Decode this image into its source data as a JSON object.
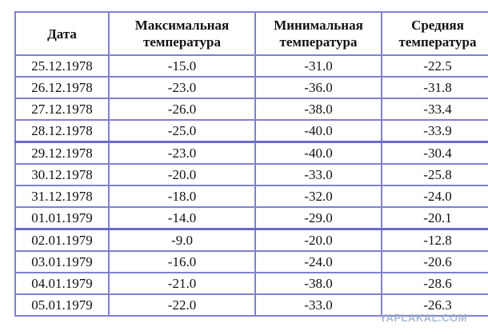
{
  "table": {
    "headers": {
      "date": "Дата",
      "max_line1": "Максимальная",
      "max_line2": "температура",
      "min_line1": "Минимальная",
      "min_line2": "температура",
      "avg_line1": "Средняя",
      "avg_line2": "температура"
    },
    "rows": [
      {
        "date": "25.12.1978",
        "max": "-15.0",
        "min": "-31.0",
        "avg": "-22.5"
      },
      {
        "date": "26.12.1978",
        "max": "-23.0",
        "min": "-36.0",
        "avg": "-31.8"
      },
      {
        "date": "27.12.1978",
        "max": "-26.0",
        "min": "-38.0",
        "avg": "-33.4"
      },
      {
        "date": "28.12.1978",
        "max": "-25.0",
        "min": "-40.0",
        "avg": "-33.9"
      },
      {
        "date": "29.12.1978",
        "max": "-23.0",
        "min": "-40.0",
        "avg": "-30.4"
      },
      {
        "date": "30.12.1978",
        "max": "-20.0",
        "min": "-33.0",
        "avg": "-25.8"
      },
      {
        "date": "31.12.1978",
        "max": "-18.0",
        "min": "-32.0",
        "avg": "-24.0"
      },
      {
        "date": "01.01.1979",
        "max": "-14.0",
        "min": "-29.0",
        "avg": "-20.1"
      },
      {
        "date": "02.01.1979",
        "max": "-9.0",
        "min": "-20.0",
        "avg": "-12.8"
      },
      {
        "date": "03.01.1979",
        "max": "-16.0",
        "min": "-24.0",
        "avg": "-20.6"
      },
      {
        "date": "04.01.1979",
        "max": "-21.0",
        "min": "-38.0",
        "avg": "-28.6"
      },
      {
        "date": "05.01.1979",
        "max": "-22.0",
        "min": "-33.0",
        "avg": "-26.3"
      }
    ]
  },
  "watermark": "YAPLAKAL.COM",
  "colors": {
    "border": "#8080d0",
    "watermark": "#9ab0c8"
  }
}
